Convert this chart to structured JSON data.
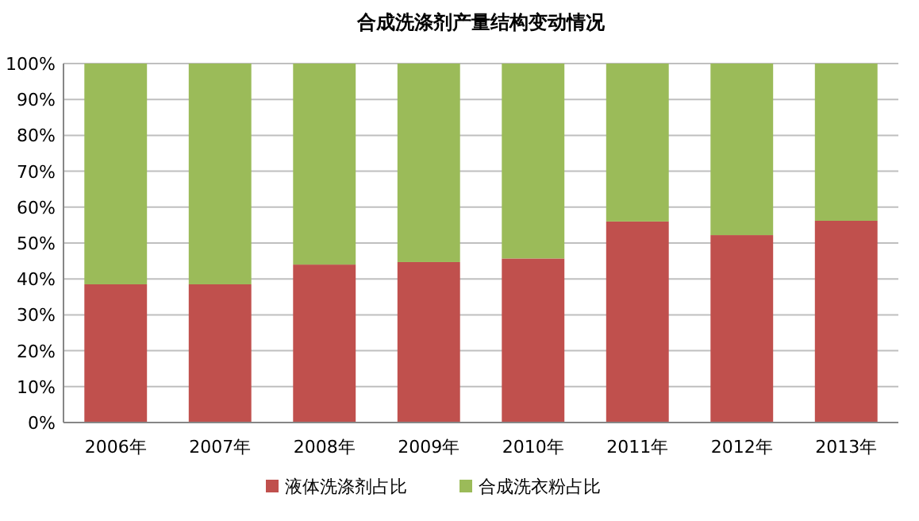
{
  "chart_data": {
    "type": "bar",
    "title": "合成洗涤剂产量结构变动情况",
    "stacked": true,
    "categories": [
      "2006年",
      "2007年",
      "2008年",
      "2009年",
      "2010年",
      "2011年",
      "2012年",
      "2013年"
    ],
    "series": [
      {
        "name": "液体洗涤剂占比",
        "color": "#c0504d",
        "values": [
          38.5,
          38.5,
          44,
          44.7,
          45.7,
          56,
          52.2,
          56.2
        ]
      },
      {
        "name": "合成洗衣粉占比",
        "color": "#9bbb59",
        "values": [
          61.5,
          61.5,
          56,
          55.3,
          54.3,
          44,
          47.8,
          43.8
        ]
      }
    ],
    "ylim": [
      0,
      100
    ],
    "yticks": [
      {
        "value": 0,
        "label": "0%"
      },
      {
        "value": 10,
        "label": "10%"
      },
      {
        "value": 20,
        "label": "20%"
      },
      {
        "value": 30,
        "label": "30%"
      },
      {
        "value": 40,
        "label": "40%"
      },
      {
        "value": 50,
        "label": "50%"
      },
      {
        "value": 60,
        "label": "60%"
      },
      {
        "value": 70,
        "label": "70%"
      },
      {
        "value": 80,
        "label": "80%"
      },
      {
        "value": 90,
        "label": "90%"
      },
      {
        "value": 100,
        "label": "100%"
      }
    ],
    "grid": "y",
    "legend": "bottom"
  }
}
